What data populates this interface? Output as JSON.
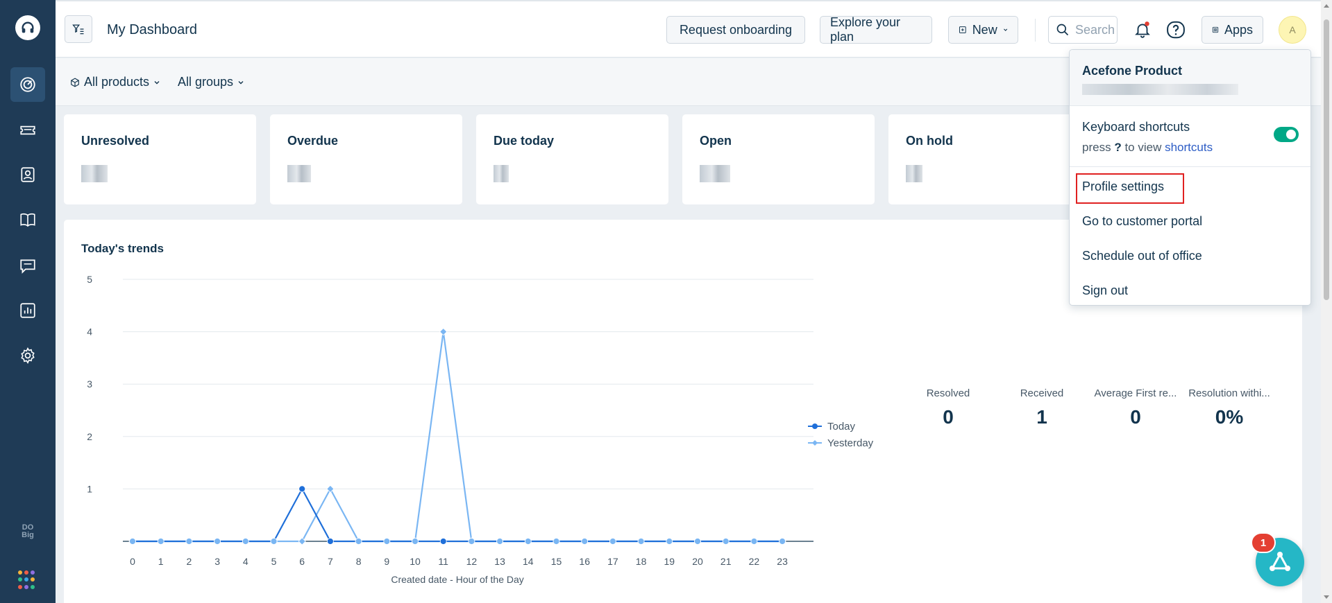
{
  "sidebar": {
    "items": [
      "dashboard",
      "tickets",
      "contacts",
      "solutions",
      "discussions",
      "analytics",
      "admin"
    ],
    "text_logo": "DO Big",
    "grid_colors": [
      "#f6b33b",
      "#ef5d48",
      "#8f6fe1",
      "#2fbf8a",
      "#3aa7e6",
      "#f6b33b",
      "#ef5d48",
      "#8f6fe1",
      "#2fbf8a"
    ]
  },
  "header": {
    "title": "My Dashboard",
    "request_onboarding": "Request onboarding",
    "explore_plan": "Explore your plan",
    "new_label": "New",
    "search_placeholder": "Search",
    "apps_label": "Apps",
    "avatar_initial": "A"
  },
  "filters": {
    "products": "All products",
    "groups": "All groups"
  },
  "cards": [
    {
      "title": "Unresolved"
    },
    {
      "title": "Overdue"
    },
    {
      "title": "Due today"
    },
    {
      "title": "Open"
    },
    {
      "title": "On hold"
    }
  ],
  "trends": {
    "title": "Today's trends",
    "metrics": [
      {
        "label": "Resolved",
        "value": "0"
      },
      {
        "label": "Received",
        "value": "1"
      },
      {
        "label": "Average First re...",
        "value": "0"
      },
      {
        "label": "Resolution withi...",
        "value": "0%"
      }
    ]
  },
  "chart_data": {
    "type": "line",
    "x": [
      0,
      1,
      2,
      3,
      4,
      5,
      6,
      7,
      8,
      9,
      10,
      11,
      12,
      13,
      14,
      15,
      16,
      17,
      18,
      19,
      20,
      21,
      22,
      23
    ],
    "series": [
      {
        "name": "Today",
        "color": "#1f6fd9",
        "values": [
          0,
          0,
          0,
          0,
          0,
          0,
          1,
          0,
          0,
          0,
          0,
          0,
          0,
          0,
          0,
          0,
          0,
          0,
          0,
          0,
          0,
          0,
          0,
          0
        ]
      },
      {
        "name": "Yesterday",
        "color": "#7ab6f3",
        "values": [
          0,
          0,
          0,
          0,
          0,
          0,
          0,
          1,
          0,
          0,
          0,
          4,
          0,
          0,
          0,
          0,
          0,
          0,
          0,
          0,
          0,
          0,
          0,
          0
        ]
      }
    ],
    "ylim": [
      0,
      5
    ],
    "yticks": [
      1,
      2,
      3,
      4,
      5
    ],
    "xlabel": "Created date - Hour of the Day",
    "ylabel": "",
    "grid": true,
    "legend": "right"
  },
  "dropdown": {
    "name": "Acefone Product",
    "keyboard_shortcuts": "Keyboard shortcuts",
    "press": "press",
    "key": "?",
    "to_view": "to view",
    "shortcuts_link": "shortcuts",
    "profile_settings": "Profile settings",
    "customer_portal": "Go to customer portal",
    "out_of_office": "Schedule out of office",
    "sign_out": "Sign out"
  },
  "chat": {
    "badge": "1"
  }
}
